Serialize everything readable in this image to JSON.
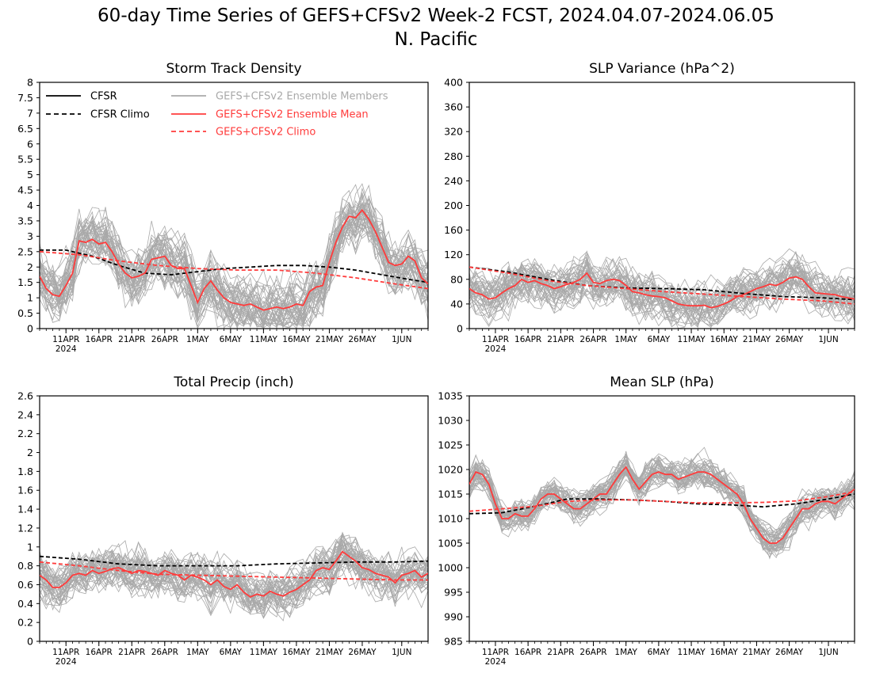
{
  "title_line1": "60-day Time Series of GEFS+CFSv2 Week-2 FCST, 2024.04.07-2024.06.05",
  "title_line2": "N. Pacific",
  "colors": {
    "cfsr": "#000000",
    "members": "#a9a9a9",
    "ens_mean": "#ff3b3b",
    "model_climo": "#ff3b3b"
  },
  "legend": {
    "cfsr": "CFSR",
    "cfsr_climo": "CFSR Climo",
    "members": "GEFS+CFSv2 Ensemble Members",
    "ens_mean": "GEFS+CFSv2 Ensemble Mean",
    "model_climo": "GEFS+CFSv2 Climo"
  },
  "x_tick_labels": [
    "11APR",
    "16APR",
    "21APR",
    "26APR",
    "1MAY",
    "6MAY",
    "11MAY",
    "16MAY",
    "21MAY",
    "26MAY",
    "1JUN"
  ],
  "x_tick_days": [
    4,
    9,
    14,
    19,
    24,
    29,
    34,
    39,
    44,
    49,
    55
  ],
  "x_year_label": "2024",
  "chart_data": [
    {
      "type": "line",
      "title": "Storm Track Density",
      "ylim": [
        0,
        8
      ],
      "yticks": [
        0,
        0.5,
        1,
        1.5,
        2,
        2.5,
        3,
        3.5,
        4,
        4.5,
        5,
        5.5,
        6,
        6.5,
        7,
        7.5,
        8
      ],
      "ytick_labels": [
        "0",
        "0.5",
        "1",
        "1.5",
        "2",
        "2.5",
        "3",
        "3.5",
        "4",
        "4.5",
        "5",
        "5.5",
        "6",
        "6.5",
        "7",
        "7.5",
        "8"
      ],
      "show_legend": true,
      "series": [
        {
          "key": "cfsr_climo",
          "style": "dashed",
          "color": "#000000",
          "x": [
            0,
            4,
            8,
            12,
            16,
            20,
            24,
            28,
            32,
            36,
            40,
            44,
            48,
            52,
            56,
            59
          ],
          "values": [
            2.55,
            2.55,
            2.35,
            2.05,
            1.8,
            1.75,
            1.85,
            1.95,
            2.0,
            2.05,
            2.05,
            2.0,
            1.9,
            1.75,
            1.6,
            1.5
          ]
        },
        {
          "key": "model_climo",
          "style": "dashed",
          "color": "#ff3b3b",
          "x": [
            0,
            6,
            12,
            18,
            24,
            30,
            36,
            42,
            48,
            54,
            59
          ],
          "values": [
            2.5,
            2.4,
            2.2,
            2.05,
            1.95,
            1.9,
            1.9,
            1.8,
            1.65,
            1.45,
            1.3
          ]
        },
        {
          "key": "ens_mean",
          "style": "solid",
          "color": "#ff3b3b",
          "x": [
            0,
            1,
            2,
            3,
            4,
            5,
            6,
            7,
            8,
            9,
            10,
            11,
            12,
            13,
            14,
            15,
            16,
            17,
            18,
            19,
            20,
            21,
            22,
            23,
            24,
            25,
            26,
            27,
            28,
            29,
            30,
            31,
            32,
            33,
            34,
            35,
            36,
            37,
            38,
            39,
            40,
            41,
            42,
            43,
            44,
            45,
            46,
            47,
            48,
            49,
            50,
            51,
            52,
            53,
            54,
            55,
            56,
            57,
            58,
            59
          ],
          "values": [
            1.7,
            1.3,
            1.1,
            1.05,
            1.4,
            1.8,
            2.85,
            2.8,
            2.9,
            2.75,
            2.8,
            2.5,
            2.1,
            1.8,
            1.65,
            1.7,
            1.8,
            2.25,
            2.3,
            2.35,
            2.05,
            1.95,
            1.95,
            1.4,
            0.85,
            1.3,
            1.55,
            1.25,
            1.0,
            0.85,
            0.8,
            0.75,
            0.8,
            0.7,
            0.6,
            0.65,
            0.7,
            0.65,
            0.7,
            0.8,
            0.75,
            1.2,
            1.35,
            1.4,
            2.15,
            2.8,
            3.3,
            3.65,
            3.6,
            3.85,
            3.55,
            3.15,
            2.65,
            2.15,
            2.05,
            2.1,
            2.35,
            2.2,
            1.65,
            1.45
          ]
        }
      ]
    },
    {
      "type": "line",
      "title": "SLP Variance (hPa^2)",
      "ylim": [
        0,
        400
      ],
      "yticks": [
        0,
        40,
        80,
        120,
        160,
        200,
        240,
        280,
        320,
        360,
        400
      ],
      "ytick_labels": [
        "0",
        "40",
        "80",
        "120",
        "160",
        "200",
        "240",
        "280",
        "320",
        "360",
        "400"
      ],
      "show_legend": false,
      "series": [
        {
          "key": "cfsr_climo",
          "style": "dashed",
          "color": "#000000",
          "x": [
            0,
            6,
            12,
            18,
            24,
            30,
            36,
            42,
            48,
            54,
            59
          ],
          "values": [
            100,
            92,
            80,
            70,
            66,
            65,
            63,
            57,
            52,
            50,
            47
          ]
        },
        {
          "key": "model_climo",
          "style": "dashed",
          "color": "#ff3b3b",
          "x": [
            0,
            6,
            12,
            18,
            24,
            30,
            36,
            42,
            48,
            54,
            59
          ],
          "values": [
            100,
            90,
            78,
            70,
            65,
            60,
            56,
            52,
            48,
            45,
            40
          ]
        },
        {
          "key": "ens_mean",
          "style": "solid",
          "color": "#ff3b3b",
          "x": [
            0,
            1,
            2,
            3,
            4,
            5,
            6,
            7,
            8,
            9,
            10,
            11,
            12,
            13,
            14,
            15,
            16,
            17,
            18,
            19,
            20,
            21,
            22,
            23,
            24,
            25,
            26,
            27,
            28,
            29,
            30,
            31,
            32,
            33,
            34,
            35,
            36,
            37,
            38,
            39,
            40,
            41,
            42,
            43,
            44,
            45,
            46,
            47,
            48,
            49,
            50,
            51,
            52,
            53,
            54,
            55,
            56,
            57,
            58,
            59
          ],
          "values": [
            65,
            58,
            55,
            48,
            50,
            58,
            65,
            70,
            80,
            75,
            78,
            73,
            70,
            65,
            68,
            72,
            75,
            80,
            90,
            75,
            73,
            78,
            80,
            78,
            70,
            60,
            58,
            55,
            53,
            52,
            50,
            45,
            40,
            38,
            37,
            37,
            38,
            34,
            36,
            40,
            45,
            52,
            55,
            60,
            65,
            68,
            72,
            70,
            75,
            82,
            84,
            80,
            68,
            58,
            57,
            56,
            55,
            52,
            50,
            48
          ]
        }
      ]
    },
    {
      "type": "line",
      "title": "Total Precip (inch)",
      "ylim": [
        0,
        2.6
      ],
      "yticks": [
        0,
        0.2,
        0.4,
        0.6,
        0.8,
        1,
        1.2,
        1.4,
        1.6,
        1.8,
        2,
        2.2,
        2.4,
        2.6
      ],
      "ytick_labels": [
        "0",
        "0.2",
        "0.4",
        "0.6",
        "0.8",
        "1",
        "1.2",
        "1.4",
        "1.6",
        "1.8",
        "2",
        "2.2",
        "2.4",
        "2.6"
      ],
      "show_legend": false,
      "series": [
        {
          "key": "cfsr_climo",
          "style": "dashed",
          "color": "#000000",
          "x": [
            0,
            6,
            12,
            18,
            24,
            30,
            36,
            42,
            48,
            54,
            59
          ],
          "values": [
            0.9,
            0.87,
            0.82,
            0.8,
            0.8,
            0.8,
            0.82,
            0.83,
            0.84,
            0.84,
            0.85
          ]
        },
        {
          "key": "model_climo",
          "style": "dashed",
          "color": "#ff3b3b",
          "x": [
            0,
            6,
            12,
            18,
            24,
            30,
            36,
            42,
            48,
            54,
            59
          ],
          "values": [
            0.84,
            0.8,
            0.75,
            0.71,
            0.7,
            0.69,
            0.68,
            0.67,
            0.66,
            0.65,
            0.65
          ]
        },
        {
          "key": "ens_mean",
          "style": "solid",
          "color": "#ff3b3b",
          "x": [
            0,
            1,
            2,
            3,
            4,
            5,
            6,
            7,
            8,
            9,
            10,
            11,
            12,
            13,
            14,
            15,
            16,
            17,
            18,
            19,
            20,
            21,
            22,
            23,
            24,
            25,
            26,
            27,
            28,
            29,
            30,
            31,
            32,
            33,
            34,
            35,
            36,
            37,
            38,
            39,
            40,
            41,
            42,
            43,
            44,
            45,
            46,
            47,
            48,
            49,
            50,
            51,
            52,
            53,
            54,
            55,
            56,
            57,
            58,
            59
          ],
          "values": [
            0.7,
            0.65,
            0.57,
            0.57,
            0.62,
            0.7,
            0.72,
            0.7,
            0.75,
            0.72,
            0.74,
            0.77,
            0.78,
            0.75,
            0.72,
            0.75,
            0.74,
            0.72,
            0.7,
            0.75,
            0.72,
            0.7,
            0.65,
            0.7,
            0.68,
            0.65,
            0.6,
            0.65,
            0.58,
            0.55,
            0.6,
            0.52,
            0.47,
            0.5,
            0.48,
            0.53,
            0.5,
            0.48,
            0.52,
            0.55,
            0.6,
            0.65,
            0.75,
            0.78,
            0.76,
            0.85,
            0.95,
            0.9,
            0.85,
            0.78,
            0.76,
            0.72,
            0.7,
            0.68,
            0.62,
            0.7,
            0.72,
            0.75,
            0.68,
            0.72
          ]
        }
      ]
    },
    {
      "type": "line",
      "title": "Mean SLP (hPa)",
      "ylim": [
        985,
        1035
      ],
      "yticks": [
        985,
        990,
        995,
        1000,
        1005,
        1010,
        1015,
        1020,
        1025,
        1030,
        1035
      ],
      "ytick_labels": [
        "985",
        "990",
        "995",
        "1000",
        "1005",
        "1010",
        "1015",
        "1020",
        "1025",
        "1030",
        "1035"
      ],
      "show_legend": false,
      "series": [
        {
          "key": "cfsr_climo",
          "style": "dashed",
          "color": "#000000",
          "x": [
            0,
            5,
            10,
            15,
            20,
            25,
            30,
            35,
            40,
            45,
            50,
            55,
            59
          ],
          "values": [
            1011,
            1011.2,
            1012.5,
            1014,
            1014,
            1013.8,
            1013.5,
            1013,
            1012.8,
            1012.4,
            1013,
            1014,
            1015
          ]
        },
        {
          "key": "model_climo",
          "style": "dashed",
          "color": "#ff3b3b",
          "x": [
            0,
            5,
            10,
            15,
            20,
            25,
            30,
            35,
            40,
            45,
            50,
            55,
            59
          ],
          "values": [
            1011.5,
            1012,
            1012.5,
            1013.5,
            1013.8,
            1013.8,
            1013.5,
            1013.2,
            1013.2,
            1013.3,
            1013.6,
            1014.5,
            1015.5
          ]
        },
        {
          "key": "ens_mean",
          "style": "solid",
          "color": "#ff3b3b",
          "x": [
            0,
            1,
            2,
            3,
            4,
            5,
            6,
            7,
            8,
            9,
            10,
            11,
            12,
            13,
            14,
            15,
            16,
            17,
            18,
            19,
            20,
            21,
            22,
            23,
            24,
            25,
            26,
            27,
            28,
            29,
            30,
            31,
            32,
            33,
            34,
            35,
            36,
            37,
            38,
            39,
            40,
            41,
            42,
            43,
            44,
            45,
            46,
            47,
            48,
            49,
            50,
            51,
            52,
            53,
            54,
            55,
            56,
            57,
            58,
            59
          ],
          "values": [
            1017,
            1019.5,
            1019,
            1017,
            1013,
            1010,
            1010,
            1011,
            1010.5,
            1010.5,
            1012,
            1014,
            1015,
            1015,
            1014,
            1013,
            1012,
            1012,
            1013,
            1014,
            1015,
            1015,
            1017,
            1019,
            1020.5,
            1018,
            1016,
            1017.5,
            1019,
            1019.5,
            1019,
            1019,
            1018,
            1018.5,
            1019,
            1019.5,
            1019.5,
            1019,
            1018,
            1017,
            1016,
            1015,
            1013,
            1010,
            1008,
            1006,
            1005,
            1005,
            1006,
            1008,
            1010,
            1012,
            1012,
            1013,
            1013.5,
            1013.5,
            1013,
            1014,
            1015,
            1016
          ]
        }
      ]
    }
  ]
}
